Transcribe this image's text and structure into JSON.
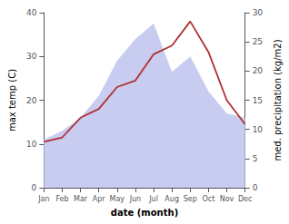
{
  "chart_data": {
    "type": "line",
    "categories": [
      "Jan",
      "Feb",
      "Mar",
      "Apr",
      "May",
      "Jun",
      "Jul",
      "Aug",
      "Sep",
      "Oct",
      "Nov",
      "Dec"
    ],
    "series": [
      {
        "type": "area",
        "color": "#c8ccf0",
        "values": [
          11.0,
          13.0,
          16.0,
          21.0,
          29.0,
          34.0,
          37.5,
          26.5,
          30.0,
          22.0,
          17.0,
          16.0
        ]
      },
      {
        "type": "line",
        "color": "#b03030",
        "values": [
          10.5,
          11.5,
          16.0,
          18.0,
          23.0,
          24.5,
          30.5,
          32.5,
          38.0,
          31.0,
          20.0,
          14.5
        ]
      }
    ],
    "xlabel": "date (month)",
    "ylabel": "max temp (C)",
    "y2label": "med. precipitation (kg/m2)",
    "ylim": [
      0,
      40
    ],
    "yticks": [
      0,
      10,
      20,
      30,
      40
    ],
    "y2lim": [
      0,
      30
    ],
    "y2ticks": [
      0,
      5,
      10,
      15,
      20,
      25,
      30
    ],
    "grid": false
  }
}
